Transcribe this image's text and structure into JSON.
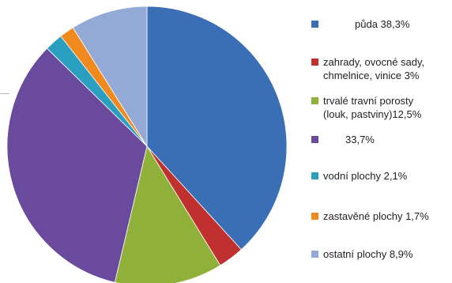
{
  "chart_data": {
    "type": "pie",
    "start_angle_deg": 0,
    "direction": "clockwise",
    "slices": [
      {
        "label": "půda 38,3%",
        "value": 38.3,
        "color": "#3a6fb5"
      },
      {
        "label": "zahrady, ovocné sady,\nchmelnice, vinice 3%",
        "value": 3.0,
        "color": "#c0302e"
      },
      {
        "label": "trvalé travní porosty\n(louk, pastviny)12,5%",
        "value": 12.5,
        "color": "#8fb13a"
      },
      {
        "label": "33,7%",
        "value": 33.7,
        "color": "#6a4a9c"
      },
      {
        "label": "vodní plochy 2,1%",
        "value": 2.1,
        "color": "#2a9fc0"
      },
      {
        "label": "zastavěné plochy 1,7%",
        "value": 1.7,
        "color": "#f08a1e"
      },
      {
        "label": "ostatní plochy 8,9%",
        "value": 8.9,
        "color": "#93a9d6"
      }
    ],
    "legend_position": "right"
  }
}
